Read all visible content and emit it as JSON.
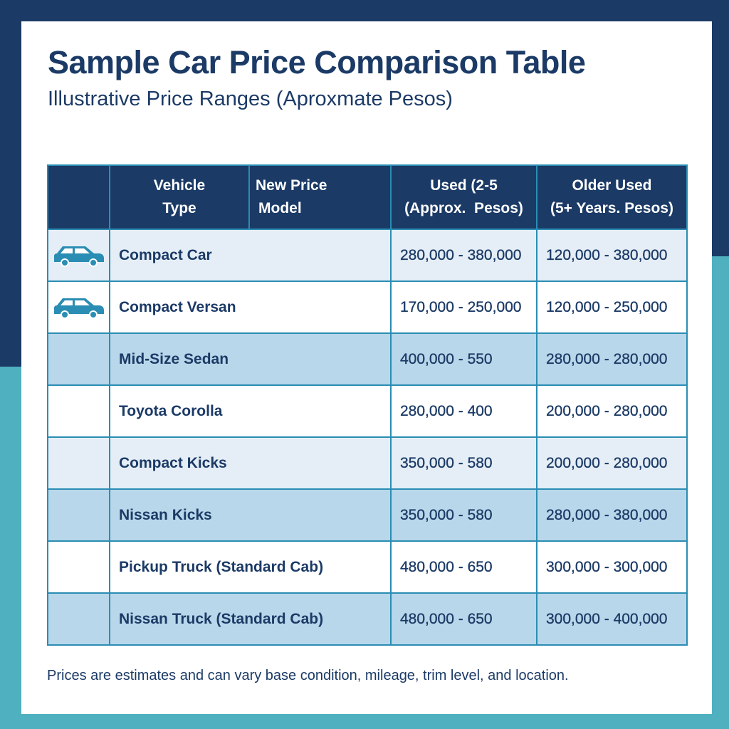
{
  "title": "Sample Car Price Comparison Table",
  "subtitle": "Illustrative Price Ranges (Aproxmate Pesos)",
  "colors": {
    "navy": "#1b3a66",
    "teal": "#4fb0bf",
    "border": "#2a8db3",
    "row_blue": "#b8d7ea",
    "row_light": "#e5eef6",
    "icon": "#2a8db3"
  },
  "table": {
    "headers": [
      "",
      "Vehicle Type",
      "New Price Model",
      "Used (2-5 (Approx. Pesos)",
      "Older Used (5+ Years. Pesos)"
    ],
    "header_lines": {
      "vehicle": [
        "Vehicle",
        "Type"
      ],
      "new_price": [
        "New Price",
        "Model"
      ],
      "used": [
        "Used (2-5",
        "(Approx.  Pesos)"
      ],
      "older": [
        "Older Used",
        "(5+ Years. Pesos)"
      ]
    },
    "rows": [
      {
        "icon": "car-icon",
        "name": "Compact Car",
        "used": "280,000 - 380,000",
        "older": "120,000 - 380,000",
        "style": "light"
      },
      {
        "icon": "car-icon",
        "name": "Compact Versan",
        "used": "170,000 - 250,000",
        "older": "120,000 - 250,000",
        "style": "white"
      },
      {
        "icon": "",
        "name": "Mid-Size Sedan",
        "used": "400,000 - 550",
        "older": "280,000 - 280,000",
        "style": "blue"
      },
      {
        "icon": "",
        "name": "Toyota Corolla",
        "used": "280,000 - 400",
        "older": "200,000 - 280,000",
        "style": "white"
      },
      {
        "icon": "",
        "name": "Compact Kicks",
        "used": "350,000 - 580",
        "older": "200,000 - 280,000",
        "style": "light"
      },
      {
        "icon": "",
        "name": "Nissan Kicks",
        "used": "350,000 - 580",
        "older": "280,000 - 380,000",
        "style": "blue"
      },
      {
        "icon": "",
        "name": "Pickup Truck (Standard Cab)",
        "used": "480,000 - 650",
        "older": "300,000 - 300,000",
        "style": "white"
      },
      {
        "icon": "",
        "name": "Nissan Truck (Standard Cab)",
        "used": "480,000 - 650",
        "older": "300,000 - 400,000",
        "style": "blue"
      }
    ]
  },
  "footer": "Prices are estimates and can vary base condition, mileage, trim level, and location."
}
